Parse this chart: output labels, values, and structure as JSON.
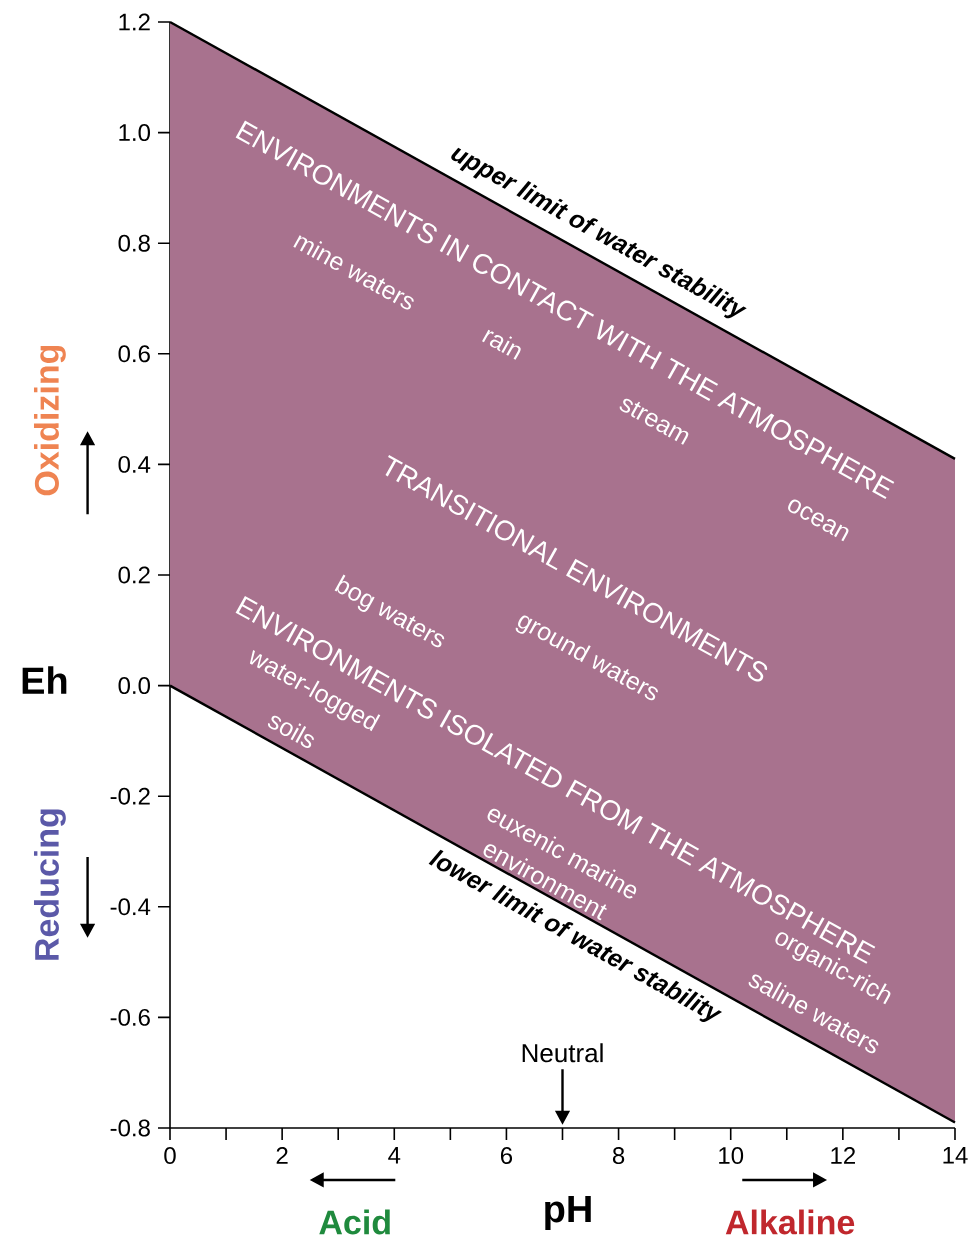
{
  "chart_data": {
    "type": "line",
    "xlabel": "pH",
    "ylabel": "Eh",
    "x": [
      0,
      14
    ],
    "series": [
      {
        "type": "area",
        "color": "#a8728e",
        "upper": [
          1.2,
          0.41
        ],
        "lower": [
          0,
          -0.79
        ],
        "values": [
          null,
          null
        ]
      },
      {
        "name": "upper limit of water stability",
        "color": "#000000",
        "values": [
          1.2,
          0.41
        ]
      },
      {
        "name": "lower limit of water stability",
        "color": "#000000",
        "values": [
          0,
          -0.79
        ]
      }
    ],
    "xlim": [
      0,
      14
    ],
    "ylim": [
      -0.8,
      1.2
    ],
    "xticks": [
      0,
      {
        "value": 1,
        "label": null
      },
      2,
      {
        "value": 3,
        "label": null
      },
      4,
      {
        "value": 5,
        "label": null
      },
      6,
      {
        "value": 7,
        "label": null
      },
      8,
      {
        "value": 9,
        "label": null
      },
      10,
      {
        "value": 11,
        "label": null
      },
      12,
      {
        "value": 13,
        "label": null
      },
      14
    ],
    "yticks": [
      {
        "value": -0.8,
        "label": "-0.8"
      },
      {
        "value": -0.6,
        "label": "-0.6"
      },
      {
        "value": -0.4,
        "label": "-0.4"
      },
      {
        "value": -0.2,
        "label": "-0.2"
      },
      {
        "value": 0,
        "label": "0.0"
      },
      {
        "value": 0.2,
        "label": "0.2"
      },
      {
        "value": 0.4,
        "label": "0.4"
      },
      {
        "value": 0.6,
        "label": "0.6"
      },
      {
        "value": 0.8,
        "label": "0.8"
      },
      {
        "value": 1,
        "label": "1.0"
      },
      {
        "value": 1.2,
        "label": "1.2"
      }
    ],
    "grid": false,
    "annotations": [
      "Oxidizing",
      "Reducing",
      "Acid",
      "Alkaline",
      "Neutral",
      "ENVIRONMENTS IN CONTACT WITH THE ATMOSPHERE",
      "mine waters",
      "rain",
      "stream",
      "ocean",
      "TRANSITIONAL ENVIRONMENTS",
      "bog waters",
      "ground waters",
      "ENVIRONMENTS ISOLATED FROM THE ATMOSPHERE",
      "water-logged",
      "soils",
      "euxenic marine",
      "environment",
      "organic-rich",
      "saline waters"
    ]
  }
}
